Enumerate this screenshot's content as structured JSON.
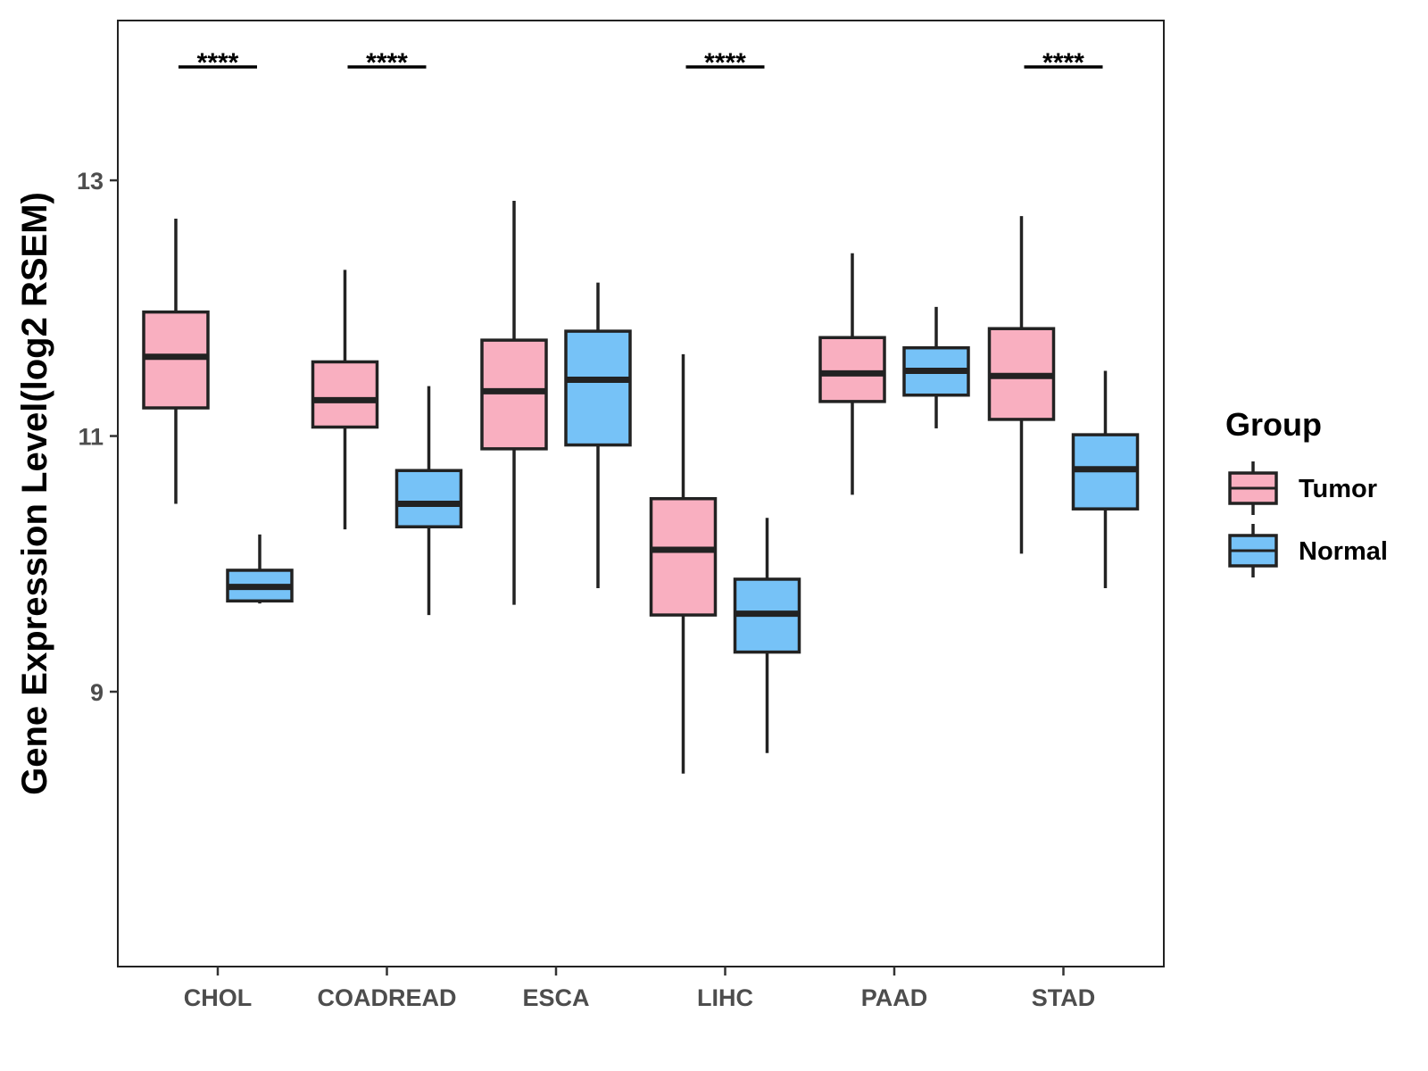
{
  "chart_data": {
    "type": "boxplot",
    "title": "",
    "xlabel": "",
    "ylabel": "Gene Expression Level(log2 RSEM)",
    "ylim": [
      6.85,
      14.25
    ],
    "yticks": [
      9,
      11,
      13
    ],
    "ytick_labels": [
      "9",
      "11",
      "13"
    ],
    "categories": [
      "CHOL",
      "COADREAD",
      "ESCA",
      "LIHC",
      "PAAD",
      "STAD"
    ],
    "legend": {
      "title": "Group",
      "placement": "right",
      "entries": [
        "Tumor",
        "Normal"
      ]
    },
    "colors": {
      "Tumor": "#F9AFC0",
      "Normal": "#76C2F7",
      "outline": "#222222"
    },
    "series": [
      {
        "name": "Tumor",
        "boxes": [
          {
            "category": "CHOL",
            "whisker_low": 10.47,
            "q1": 11.22,
            "median": 11.62,
            "q3": 11.97,
            "whisker_high": 12.7
          },
          {
            "category": "COADREAD",
            "whisker_low": 10.27,
            "q1": 11.07,
            "median": 11.28,
            "q3": 11.58,
            "whisker_high": 12.3
          },
          {
            "category": "ESCA",
            "whisker_low": 9.68,
            "q1": 10.9,
            "median": 11.35,
            "q3": 11.75,
            "whisker_high": 12.84
          },
          {
            "category": "LIHC",
            "whisker_low": 8.36,
            "q1": 9.6,
            "median": 10.11,
            "q3": 10.51,
            "whisker_high": 11.64
          },
          {
            "category": "PAAD",
            "whisker_low": 10.54,
            "q1": 11.27,
            "median": 11.49,
            "q3": 11.77,
            "whisker_high": 12.43
          },
          {
            "category": "STAD",
            "whisker_low": 10.08,
            "q1": 11.13,
            "median": 11.47,
            "q3": 11.84,
            "whisker_high": 12.72
          }
        ]
      },
      {
        "name": "Normal",
        "boxes": [
          {
            "category": "CHOL",
            "whisker_low": 9.69,
            "q1": 9.71,
            "median": 9.82,
            "q3": 9.95,
            "whisker_high": 10.23
          },
          {
            "category": "COADREAD",
            "whisker_low": 9.6,
            "q1": 10.29,
            "median": 10.47,
            "q3": 10.73,
            "whisker_high": 11.39
          },
          {
            "category": "ESCA",
            "whisker_low": 9.81,
            "q1": 10.93,
            "median": 11.44,
            "q3": 11.82,
            "whisker_high": 12.2
          },
          {
            "category": "LIHC",
            "whisker_low": 8.52,
            "q1": 9.31,
            "median": 9.61,
            "q3": 9.88,
            "whisker_high": 10.36
          },
          {
            "category": "PAAD",
            "whisker_low": 11.06,
            "q1": 11.32,
            "median": 11.51,
            "q3": 11.69,
            "whisker_high": 12.01
          },
          {
            "category": "STAD",
            "whisker_low": 9.81,
            "q1": 10.43,
            "median": 10.74,
            "q3": 11.01,
            "whisker_high": 11.51
          }
        ]
      }
    ],
    "significance": [
      {
        "category": "CHOL",
        "label": "****"
      },
      {
        "category": "COADREAD",
        "label": "****"
      },
      {
        "category": "LIHC",
        "label": "****"
      },
      {
        "category": "STAD",
        "label": "****"
      }
    ]
  }
}
